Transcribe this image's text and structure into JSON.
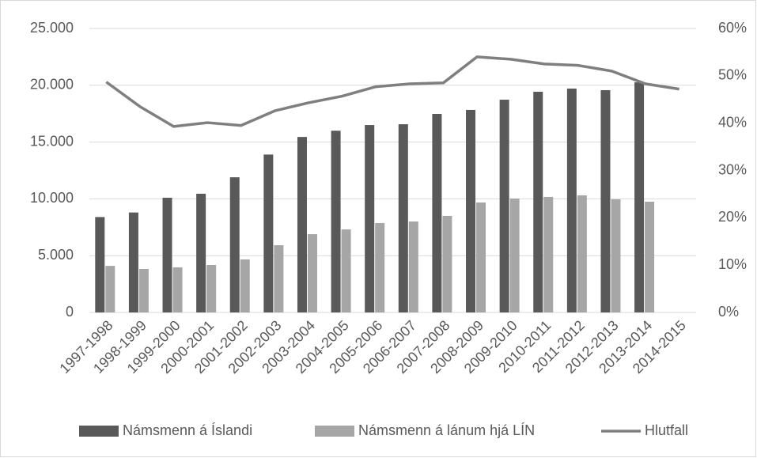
{
  "chart_data": {
    "type": "bar",
    "categories": [
      "1997-1998",
      "1998-1999",
      "1999-2000",
      "2000-2001",
      "2001-2002",
      "2002-2003",
      "2003-2004",
      "2004-2005",
      "2005-2006",
      "2006-2007",
      "2007-2008",
      "2008-2009",
      "2009-2010",
      "2010-2011",
      "2011-2012",
      "2012-2013",
      "2013-2014",
      "2014-2015"
    ],
    "series": [
      {
        "name": "Námsmenn á Íslandi",
        "color": "#595959",
        "type": "bar",
        "values": [
          8400,
          8800,
          10100,
          10450,
          11900,
          13900,
          15450,
          16000,
          16500,
          16570,
          17480,
          17830,
          18730,
          19430,
          19710,
          19570,
          20260,
          null
        ]
      },
      {
        "name": "Námsmenn á lánum hjá LÍN",
        "color": "#a6a6a6",
        "type": "bar",
        "values": [
          4100,
          3830,
          3970,
          4180,
          4670,
          5920,
          6890,
          7310,
          7870,
          8010,
          8500,
          9680,
          10030,
          10170,
          10310,
          9960,
          9750,
          null
        ]
      },
      {
        "name": "Hlutfall",
        "color": "#7f7f7f",
        "type": "line",
        "axis": "y2",
        "values": [
          48.7,
          43.5,
          39.3,
          40.1,
          39.5,
          42.6,
          44.3,
          45.7,
          47.7,
          48.3,
          48.5,
          54.0,
          53.5,
          52.5,
          52.2,
          51.0,
          48.3,
          47.2
        ]
      }
    ],
    "ylim": [
      0,
      25000
    ],
    "yticks": [
      0,
      {
        "value": 5000,
        "label": "5.000"
      },
      {
        "value": 10000,
        "label": "10.000"
      },
      {
        "value": 15000,
        "label": "15.000"
      },
      {
        "value": 20000,
        "label": "20.000"
      },
      {
        "value": 25000,
        "label": "25.000"
      }
    ],
    "y2lim": [
      0,
      60
    ],
    "y2ticks": [
      {
        "value": 0,
        "label": "0%"
      },
      {
        "value": 10,
        "label": "10%"
      },
      {
        "value": 20,
        "label": "20%"
      },
      {
        "value": 30,
        "label": "30%"
      },
      {
        "value": 40,
        "label": "40%"
      },
      {
        "value": 50,
        "label": "50%"
      },
      {
        "value": 60,
        "label": "60%"
      }
    ],
    "grid": true,
    "legend": "bottom"
  }
}
